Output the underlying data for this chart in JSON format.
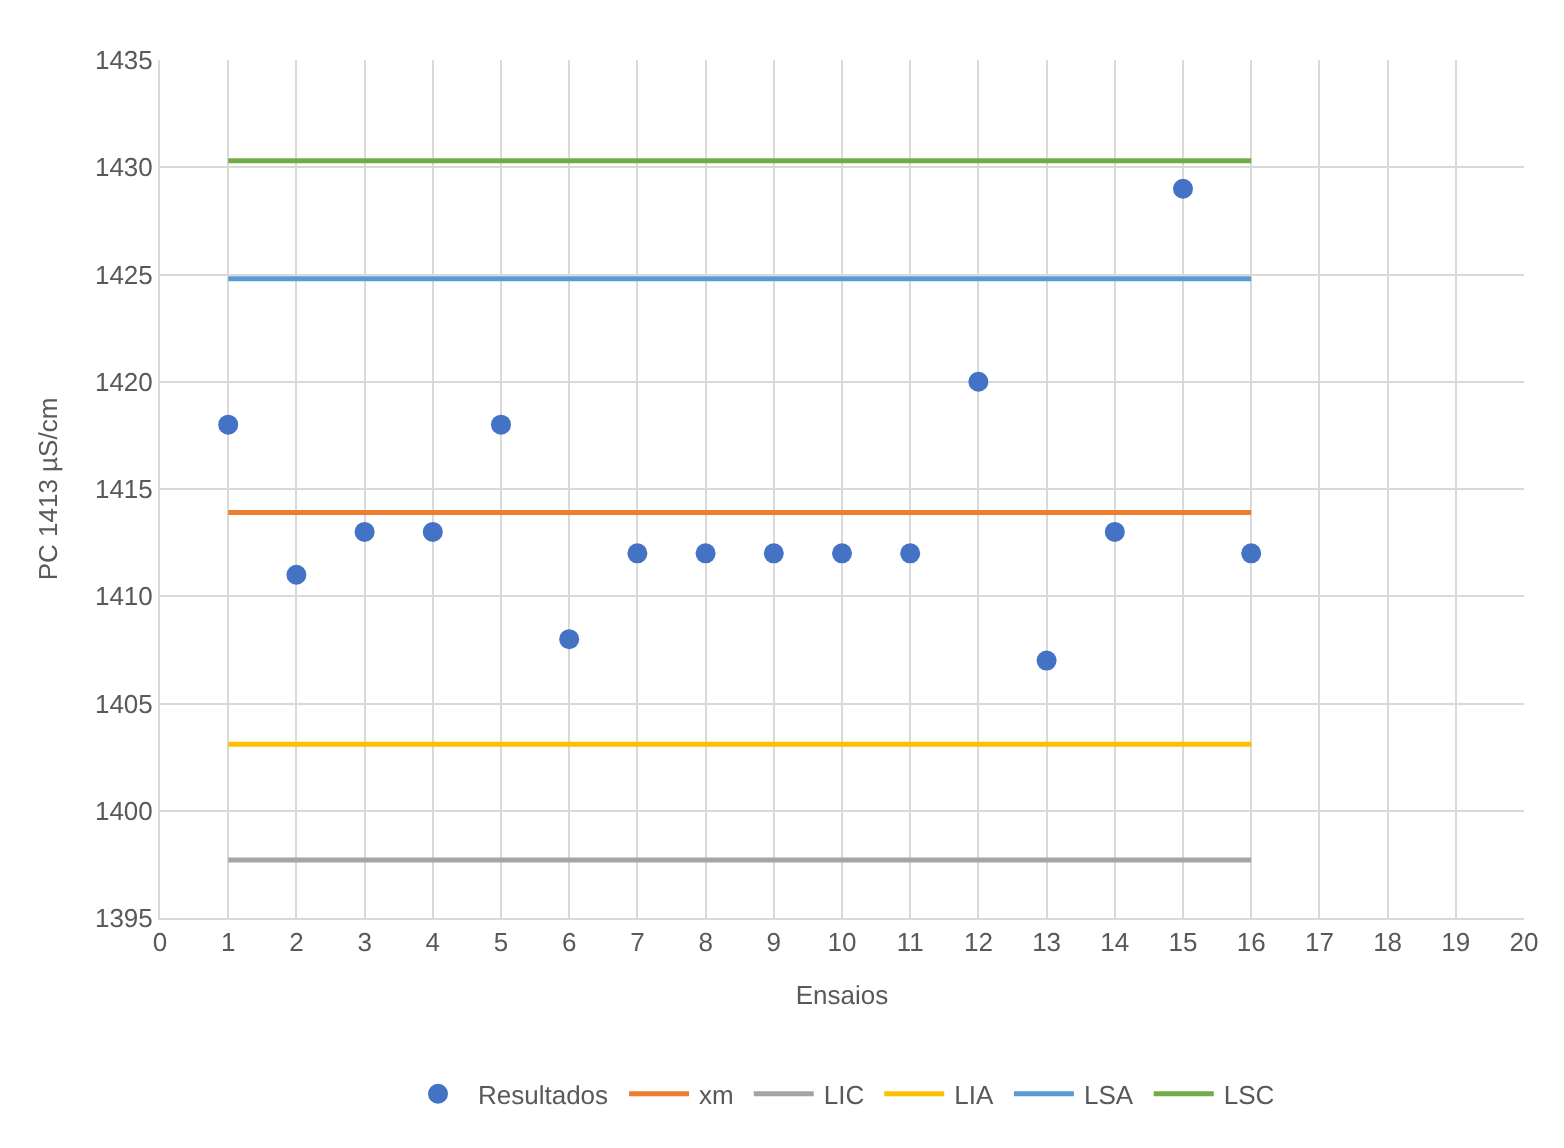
{
  "chart_data": {
    "type": "scatter",
    "xlabel": "Ensaios",
    "ylabel": "PC 1413 µS/cm",
    "xlim": [
      0,
      20
    ],
    "xticks": [
      0,
      1,
      2,
      3,
      4,
      5,
      6,
      7,
      8,
      9,
      10,
      11,
      12,
      13,
      14,
      15,
      16,
      17,
      18,
      19,
      20
    ],
    "ylim": [
      1395,
      1435
    ],
    "yticks": [
      1395,
      1400,
      1405,
      1410,
      1415,
      1420,
      1425,
      1430,
      1435
    ],
    "grid": true,
    "legend": "bottom",
    "series": [
      {
        "name": "Resultados",
        "marker": "circle",
        "color": "#4472c4",
        "x": [
          1,
          2,
          3,
          4,
          5,
          6,
          7,
          8,
          9,
          10,
          11,
          12,
          13,
          14,
          15,
          16
        ],
        "values": [
          1418,
          1411,
          1413,
          1413,
          1418,
          1408,
          1412,
          1412,
          1412,
          1412,
          1412,
          1420,
          1407,
          1413,
          1429,
          1412
        ]
      },
      {
        "name": "xm",
        "type": "line",
        "marker": "none",
        "color": "#ed7d31",
        "x": [
          1,
          16
        ],
        "values": [
          1413.9,
          1413.9
        ]
      },
      {
        "name": "LIC",
        "type": "line",
        "marker": "none",
        "color": "#a5a5a5",
        "x": [
          1,
          16
        ],
        "values": [
          1397.7,
          1397.7
        ]
      },
      {
        "name": "LIA",
        "type": "line",
        "marker": "none",
        "color": "#ffc000",
        "x": [
          1,
          16
        ],
        "values": [
          1403.1,
          1403.1
        ]
      },
      {
        "name": "LSA",
        "type": "line",
        "marker": "none",
        "color": "#5b9bd5",
        "x": [
          1,
          16
        ],
        "values": [
          1424.8,
          1424.8
        ]
      },
      {
        "name": "LSC",
        "type": "line",
        "marker": "none",
        "color": "#70ad47",
        "x": [
          1,
          16
        ],
        "values": [
          1430.3,
          1430.3
        ]
      }
    ]
  }
}
